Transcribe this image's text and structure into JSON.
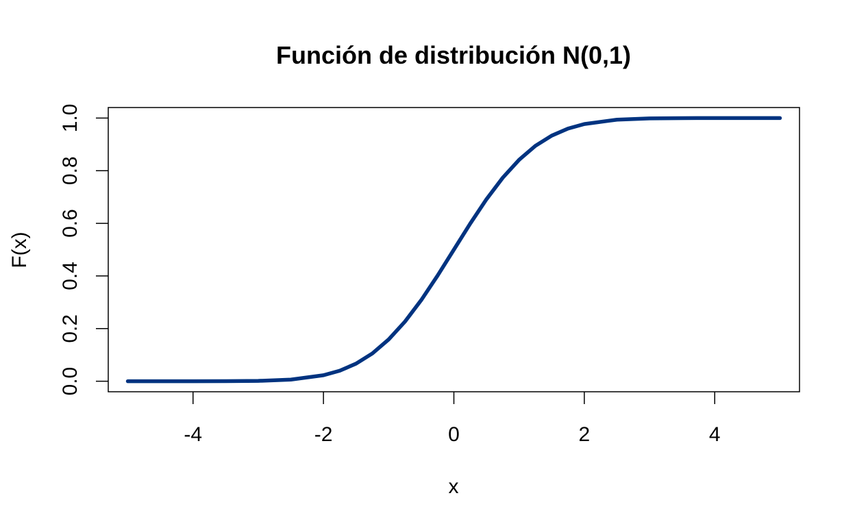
{
  "chart_data": {
    "type": "line",
    "title": "Función de distribución N(0,1)",
    "xlabel": "x",
    "ylabel": "F(x)",
    "xlim": [
      -5.3,
      5.3
    ],
    "ylim": [
      -0.04,
      1.04
    ],
    "x_ticks": [
      -4,
      -2,
      0,
      2,
      4
    ],
    "x_tick_labels": [
      "-4",
      "-2",
      "0",
      "2",
      "4"
    ],
    "y_ticks": [
      0.0,
      0.2,
      0.4,
      0.6,
      0.8,
      1.0
    ],
    "y_tick_labels": [
      "0.0",
      "0.2",
      "0.4",
      "0.6",
      "0.8",
      "1.0"
    ],
    "grid": false,
    "line_color": "#003380",
    "series": [
      {
        "x": [
          -5,
          -4.5,
          -4,
          -3.5,
          -3,
          -2.5,
          -2,
          -1.75,
          -1.5,
          -1.25,
          -1,
          -0.75,
          -0.5,
          -0.25,
          0,
          0.25,
          0.5,
          0.75,
          1,
          1.25,
          1.5,
          1.75,
          2,
          2.5,
          3,
          3.5,
          4,
          4.5,
          5
        ],
        "y": [
          0.0,
          0.0,
          0.0,
          0.0002,
          0.0013,
          0.0062,
          0.0228,
          0.0401,
          0.0668,
          0.1056,
          0.1587,
          0.2266,
          0.3085,
          0.4013,
          0.5,
          0.5987,
          0.6915,
          0.7734,
          0.8413,
          0.8944,
          0.9332,
          0.9599,
          0.9772,
          0.9938,
          0.9987,
          0.9998,
          1.0,
          1.0,
          1.0
        ]
      }
    ]
  }
}
